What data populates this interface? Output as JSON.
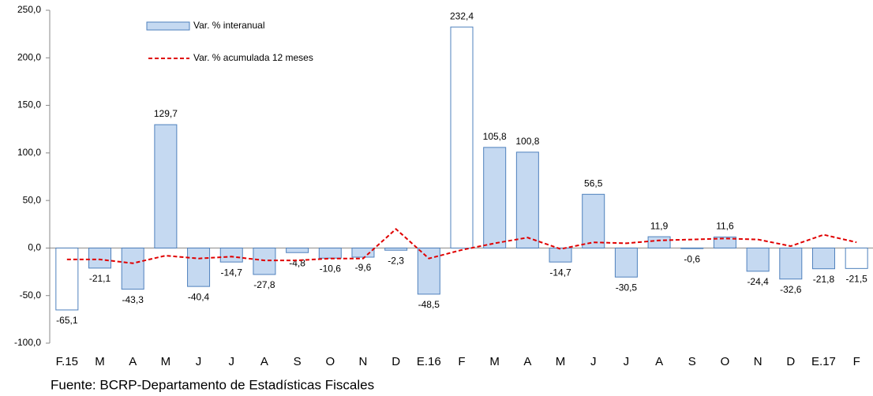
{
  "chart_data": {
    "type": "bar",
    "categories": [
      "F.15",
      "M",
      "A",
      "M",
      "J",
      "J",
      "A",
      "S",
      "O",
      "N",
      "D",
      "E.16",
      "F",
      "M",
      "A",
      "M",
      "J",
      "J",
      "A",
      "S",
      "O",
      "N",
      "D",
      "E.17",
      "F"
    ],
    "series": [
      {
        "name": "Var. % interanual",
        "type": "bar",
        "color": "#c5d9f1",
        "edge_color": "#4f81bd",
        "colors": [
          "#ffffff",
          "#c5d9f1",
          "#c5d9f1",
          "#c5d9f1",
          "#c5d9f1",
          "#c5d9f1",
          "#c5d9f1",
          "#c5d9f1",
          "#c5d9f1",
          "#c5d9f1",
          "#c5d9f1",
          "#c5d9f1",
          "#ffffff",
          "#c5d9f1",
          "#c5d9f1",
          "#c5d9f1",
          "#c5d9f1",
          "#c5d9f1",
          "#c5d9f1",
          "#c5d9f1",
          "#c5d9f1",
          "#c5d9f1",
          "#c5d9f1",
          "#c5d9f1",
          "#ffffff"
        ],
        "values": [
          -65.1,
          -21.1,
          -43.3,
          129.7,
          -40.4,
          -14.7,
          -27.8,
          -4.8,
          -10.6,
          -9.6,
          -2.3,
          -48.5,
          232.4,
          105.8,
          100.8,
          -14.7,
          56.5,
          -30.5,
          11.9,
          -0.6,
          11.6,
          -24.4,
          -32.6,
          -21.8,
          -21.5
        ],
        "value_labels": [
          "-65,1",
          "-21,1",
          "-43,3",
          "129,7",
          "-40,4",
          "-14,7",
          "-27,8",
          "-4,8",
          "-10,6",
          "-9,6",
          "-2,3",
          "-48,5",
          "232,4",
          "105,8",
          "100,8",
          "-14,7",
          "56,5",
          "-30,5",
          "11,9",
          "-0,6",
          "11,6",
          "-24,4",
          "-32,6",
          "-21,8",
          "-21,5"
        ]
      },
      {
        "name": "Var. % acumulada 12 meses",
        "type": "line",
        "color": "#e00000",
        "dashed": true,
        "values": [
          -12,
          -12,
          -16,
          -8,
          -11,
          -9,
          -13,
          -13,
          -11,
          -11,
          20,
          -11,
          -2,
          5,
          11,
          -1,
          6,
          5,
          8,
          9,
          10,
          9,
          2,
          14,
          6
        ]
      }
    ],
    "ylim": [
      -100,
      250
    ],
    "yticks": [
      {
        "value": -100,
        "label": "-100,0"
      },
      {
        "value": -50,
        "label": "-50,0"
      },
      {
        "value": 0,
        "label": "0,0"
      },
      {
        "value": 50,
        "label": "50,0"
      },
      {
        "value": 100,
        "label": "100,0"
      },
      {
        "value": 150,
        "label": "150,0"
      },
      {
        "value": 200,
        "label": "200,0"
      },
      {
        "value": 250,
        "label": "250,0"
      }
    ],
    "grid": false,
    "footnote": "Fuente: BCRP-Departamento de Estadísticas Fiscales"
  }
}
